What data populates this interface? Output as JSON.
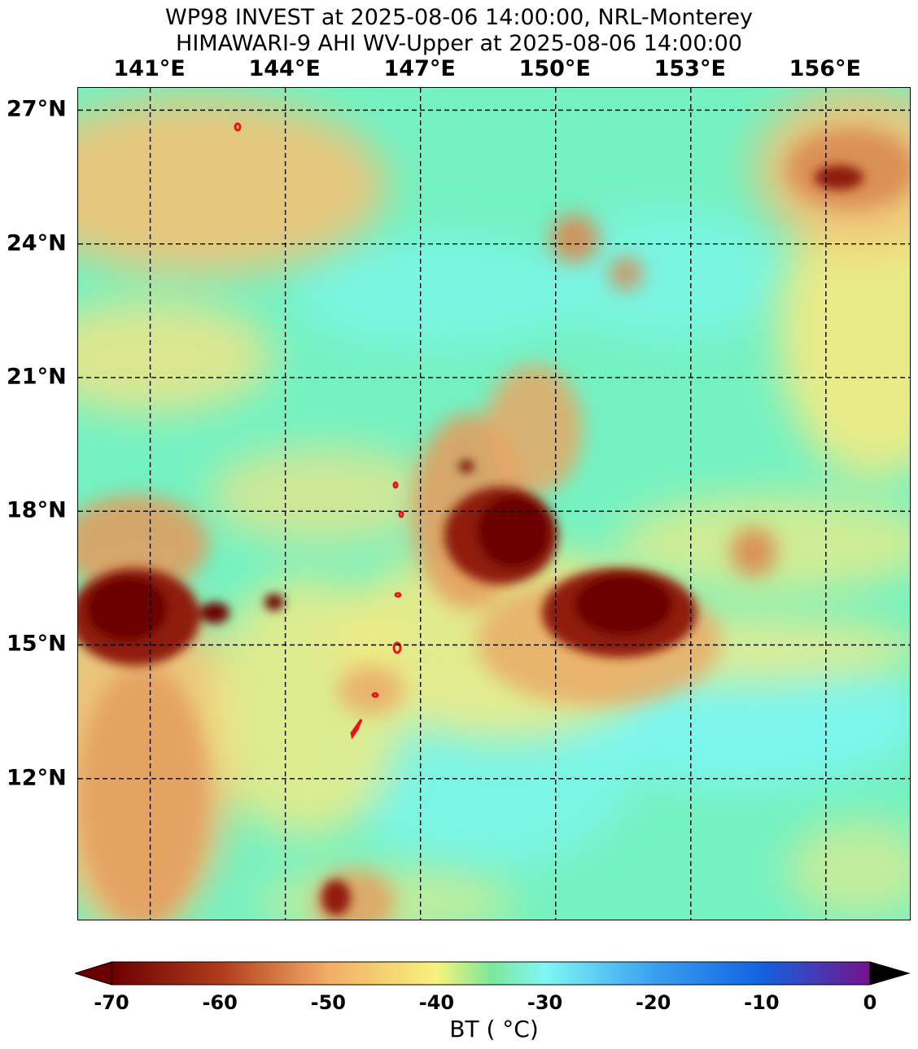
{
  "title": {
    "line1": "WP98 INVEST at 2025-08-06 14:00:00, NRL-Monterey",
    "line2": "HIMAWARI-9 AHI WV-Upper at 2025-08-06 14:00:00"
  },
  "map": {
    "lon_range": [
      139.4,
      157.9
    ],
    "lat_range": [
      8.8,
      27.5
    ],
    "lon_labels": [
      {
        "lon": 141,
        "text": "141°E"
      },
      {
        "lon": 144,
        "text": "144°E"
      },
      {
        "lon": 147,
        "text": "147°E"
      },
      {
        "lon": 150,
        "text": "150°E"
      },
      {
        "lon": 153,
        "text": "153°E"
      },
      {
        "lon": 156,
        "text": "156°E"
      }
    ],
    "lat_labels": [
      {
        "lat": 27,
        "text": "27°N"
      },
      {
        "lat": 24,
        "text": "24°N"
      },
      {
        "lat": 21,
        "text": "21°N"
      },
      {
        "lat": 18,
        "text": "18°N"
      },
      {
        "lat": 15,
        "text": "15°N"
      },
      {
        "lat": 12,
        "text": "12°N"
      }
    ],
    "gridline_style": "black dashed",
    "background_color": "#74f2c2",
    "cloud_features": [
      {
        "name": "deep-convection-center",
        "lon": 148.3,
        "lat": 17.9,
        "bt": -70
      },
      {
        "name": "convection-east",
        "lon": 150.5,
        "lat": 15.9,
        "bt": -70
      },
      {
        "name": "convection-west",
        "lon": 140.5,
        "lat": 16.0,
        "bt": -68
      },
      {
        "name": "convection-northeast-cloud",
        "lon": 157.0,
        "lat": 25.8,
        "bt": -58
      },
      {
        "name": "dry-slot",
        "lon": 153.0,
        "lat": 13.6,
        "bt": -27
      }
    ],
    "contour_color": "#e8141a"
  },
  "colorbar": {
    "label": "BT ( $^\\circ$C)",
    "label_display": "BT ( °C)",
    "min": -70,
    "max": 0,
    "extend": "both",
    "ticks": [
      {
        "value": -70,
        "text": "-70"
      },
      {
        "value": -60,
        "text": "-60"
      },
      {
        "value": -50,
        "text": "-50"
      },
      {
        "value": -40,
        "text": "-40"
      },
      {
        "value": -30,
        "text": "-30"
      },
      {
        "value": -20,
        "text": "-20"
      },
      {
        "value": -10,
        "text": "-10"
      },
      {
        "value": 0,
        "text": "0"
      }
    ],
    "stops": [
      {
        "value": -70,
        "color": "#6b0000"
      },
      {
        "value": -60,
        "color": "#b03a1c"
      },
      {
        "value": -50,
        "color": "#f3ad67"
      },
      {
        "value": -40,
        "color": "#f8f27c"
      },
      {
        "value": -35,
        "color": "#7de89a"
      },
      {
        "value": -30,
        "color": "#7ff7f5"
      },
      {
        "value": -20,
        "color": "#3aa1f0"
      },
      {
        "value": -10,
        "color": "#1362e0"
      },
      {
        "value": 0,
        "color": "#75128c"
      }
    ],
    "under_color": "#6b0000",
    "over_color": "#000000"
  }
}
